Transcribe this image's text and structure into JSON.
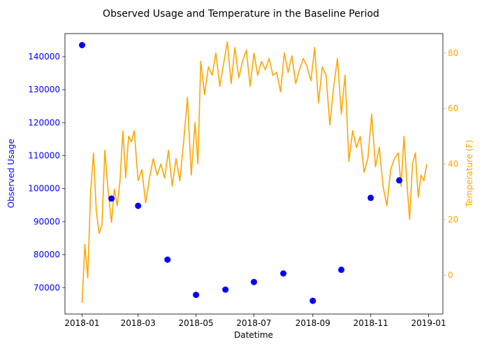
{
  "chart_data": {
    "type": "line",
    "title": "Observed Usage and Temperature in the Baseline Period",
    "xlabel": "Datetime",
    "ylabel_left": "Observed Usage",
    "ylabel_right": "Temperature (F)",
    "x_range": [
      "2017-12-14",
      "2019-01-16"
    ],
    "x_ticks": [
      "2018-01",
      "2018-03",
      "2018-05",
      "2018-07",
      "2018-09",
      "2018-11",
      "2019-01"
    ],
    "ylim_left": [
      62000,
      147000
    ],
    "yticks_left": [
      70000,
      80000,
      90000,
      100000,
      110000,
      120000,
      130000,
      140000
    ],
    "ylim_right": [
      -14,
      87
    ],
    "yticks_right": [
      0,
      20,
      40,
      60,
      80
    ],
    "grid": false,
    "colors": {
      "usage": "#0000ff",
      "temperature": "#ffa500",
      "axes": "#000000"
    },
    "series": [
      {
        "type": "scatter",
        "axis": "left",
        "color": "#0000ff",
        "x": [
          "2018-01-01",
          "2018-02-01",
          "2018-03-01",
          "2018-04-01",
          "2018-05-01",
          "2018-06-01",
          "2018-07-01",
          "2018-08-01",
          "2018-09-01",
          "2018-10-01",
          "2018-11-01",
          "2018-12-01"
        ],
        "values": [
          143500,
          97000,
          94800,
          78500,
          67800,
          69400,
          71700,
          74300,
          66000,
          75400,
          97200,
          102500
        ]
      },
      {
        "type": "line",
        "axis": "right",
        "color": "#ffa500",
        "x": [
          "2018-01-01",
          "2018-01-04",
          "2018-01-07",
          "2018-01-10",
          "2018-01-13",
          "2018-01-16",
          "2018-01-19",
          "2018-01-22",
          "2018-01-25",
          "2018-01-28",
          "2018-02-01",
          "2018-02-04",
          "2018-02-07",
          "2018-02-10",
          "2018-02-13",
          "2018-02-16",
          "2018-02-19",
          "2018-02-22",
          "2018-02-25",
          "2018-03-01",
          "2018-03-05",
          "2018-03-09",
          "2018-03-13",
          "2018-03-17",
          "2018-03-21",
          "2018-03-25",
          "2018-03-29",
          "2018-04-02",
          "2018-04-06",
          "2018-04-10",
          "2018-04-14",
          "2018-04-18",
          "2018-04-22",
          "2018-04-26",
          "2018-04-30",
          "2018-05-03",
          "2018-05-06",
          "2018-05-10",
          "2018-05-14",
          "2018-05-18",
          "2018-05-22",
          "2018-05-26",
          "2018-05-30",
          "2018-06-03",
          "2018-06-07",
          "2018-06-11",
          "2018-06-15",
          "2018-06-19",
          "2018-06-23",
          "2018-06-27",
          "2018-07-01",
          "2018-07-05",
          "2018-07-09",
          "2018-07-13",
          "2018-07-17",
          "2018-07-21",
          "2018-07-25",
          "2018-07-29",
          "2018-08-02",
          "2018-08-06",
          "2018-08-10",
          "2018-08-14",
          "2018-08-18",
          "2018-08-22",
          "2018-08-26",
          "2018-08-30",
          "2018-09-03",
          "2018-09-07",
          "2018-09-11",
          "2018-09-15",
          "2018-09-19",
          "2018-09-23",
          "2018-09-27",
          "2018-10-01",
          "2018-10-05",
          "2018-10-09",
          "2018-10-13",
          "2018-10-17",
          "2018-10-21",
          "2018-10-25",
          "2018-10-29",
          "2018-11-02",
          "2018-11-06",
          "2018-11-10",
          "2018-11-14",
          "2018-11-18",
          "2018-11-22",
          "2018-11-26",
          "2018-11-30",
          "2018-12-03",
          "2018-12-06",
          "2018-12-09",
          "2018-12-12",
          "2018-12-15",
          "2018-12-18",
          "2018-12-21",
          "2018-12-24",
          "2018-12-27",
          "2018-12-30"
        ],
        "values": [
          -10,
          11,
          -1,
          30,
          44,
          23,
          15,
          18,
          45,
          32,
          19,
          31,
          25,
          34,
          52,
          35,
          50,
          48,
          52,
          34,
          38,
          26,
          35,
          42,
          36,
          40,
          35,
          45,
          32,
          42,
          34,
          48,
          64,
          36,
          55,
          40,
          77,
          65,
          75,
          72,
          80,
          68,
          76,
          84,
          69,
          82,
          71,
          77,
          81,
          68,
          80,
          72,
          77,
          74,
          78,
          72,
          73,
          66,
          80,
          73,
          79,
          69,
          74,
          78,
          75,
          70,
          82,
          62,
          75,
          72,
          54,
          68,
          78,
          58,
          72,
          41,
          52,
          46,
          50,
          37,
          42,
          58,
          39,
          46,
          32,
          25,
          38,
          42,
          44,
          32,
          50,
          34,
          20,
          40,
          44,
          28,
          36,
          34,
          40
        ]
      }
    ]
  }
}
